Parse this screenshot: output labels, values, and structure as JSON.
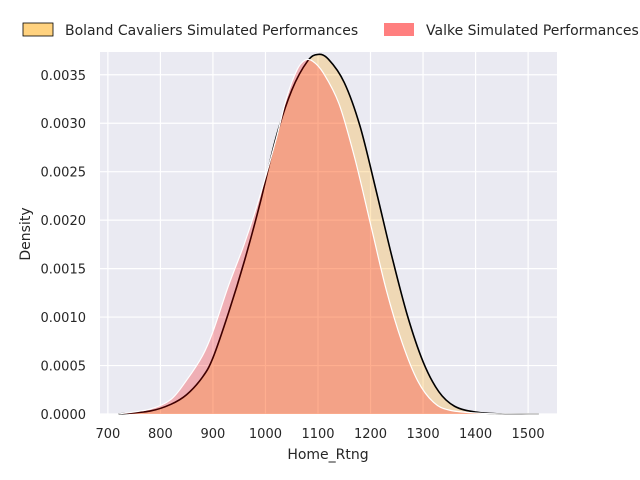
{
  "chart_data": {
    "type": "area",
    "xlabel": "Home_Rtng",
    "ylabel": "Density",
    "xlim": [
      685,
      1555
    ],
    "ylim": [
      0,
      0.0035
    ],
    "xticks": [
      700,
      800,
      900,
      1000,
      1100,
      1200,
      1300,
      1400,
      1500
    ],
    "yticks": [
      0.0,
      0.0005,
      0.001,
      0.0015,
      0.002,
      0.0025,
      0.003,
      0.0035
    ],
    "ytick_labels": [
      "0.0000",
      "0.0005",
      "0.0010",
      "0.0015",
      "0.0020",
      "0.0025",
      "0.0030",
      "0.0035"
    ],
    "grid": true,
    "legend_position": "top",
    "series": [
      {
        "name": "Boland Cavaliers Simulated Performances",
        "color": "#FFA500",
        "fill_opacity": 0.25,
        "stroke": "#000000",
        "x": [
          720,
          780,
          820,
          850,
          880,
          900,
          930,
          960,
          990,
          1020,
          1050,
          1080,
          1100,
          1120,
          1150,
          1180,
          1210,
          1240,
          1270,
          1300,
          1330,
          1360,
          1400,
          1450,
          1500,
          1520
        ],
        "y": [
          0.0,
          3e-05,
          0.0001,
          0.0002,
          0.00038,
          0.00058,
          0.00105,
          0.00158,
          0.00218,
          0.00285,
          0.00334,
          0.00364,
          0.00371,
          0.00366,
          0.00342,
          0.00297,
          0.00232,
          0.00164,
          0.00102,
          0.00054,
          0.00023,
          8e-05,
          2e-05,
          0.0,
          0.0,
          0.0
        ]
      },
      {
        "name": "Valke Simulated Performances",
        "color": "#FF0000",
        "fill_opacity": 0.25,
        "stroke": "#ffffff",
        "x": [
          720,
          780,
          820,
          850,
          880,
          900,
          930,
          960,
          990,
          1020,
          1040,
          1060,
          1075,
          1090,
          1110,
          1140,
          1170,
          1200,
          1230,
          1260,
          1290,
          1320,
          1350,
          1400,
          1450,
          1500,
          1520
        ],
        "y": [
          0.0,
          5e-05,
          0.00015,
          0.00035,
          0.0006,
          0.00085,
          0.00133,
          0.00176,
          0.00226,
          0.00283,
          0.00326,
          0.00355,
          0.00365,
          0.00364,
          0.00352,
          0.0032,
          0.00264,
          0.00196,
          0.00128,
          0.00074,
          0.00034,
          0.00012,
          4e-05,
          1e-05,
          0.0,
          0.0,
          0.0
        ]
      }
    ]
  }
}
